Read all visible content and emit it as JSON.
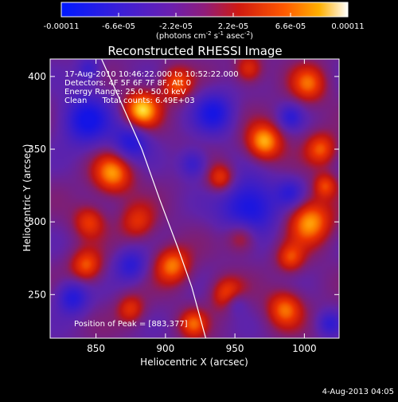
{
  "chart_data": {
    "type": "heatmap",
    "title": "Reconstructed RHESSI Image",
    "xlabel": "Heliocentric X (arcsec)",
    "ylabel": "Heliocentric Y (arcsec)",
    "xlim": [
      817,
      1025
    ],
    "ylim": [
      220,
      412
    ],
    "x_ticks": [
      850,
      900,
      950,
      1000
    ],
    "y_ticks": [
      250,
      300,
      350,
      400
    ],
    "colorbar": {
      "range": [
        -0.00011,
        0.00011
      ],
      "ticks": [
        "-0.00011",
        "-6.6e-05",
        "-2.2e-05",
        "2.2e-05",
        "6.6e-05",
        "0.00011"
      ],
      "tick_values": [
        -0.00011,
        -6.6e-05,
        -2.2e-05,
        2.2e-05,
        6.6e-05,
        0.00011
      ],
      "label_main": "(photons cm",
      "label_exp1": "-2",
      "label_mid": " s",
      "label_exp2": "-1",
      "label_end": " asec",
      "label_exp3": "-2",
      "label_close": ")"
    },
    "annotations": [
      "17-Aug-2010 10:46:22.000 to 10:52:22.000",
      "Detectors: 4F 5F 6F 7F 8F, Att 0",
      "Energy Range: 25.0 - 50.0 keV",
      "Clean      Total counts: 6.49E+03"
    ],
    "peak_label": "Position of Peak = [883,377]",
    "peak": [
      883,
      377
    ],
    "limb_curve": [
      [
        854,
        412
      ],
      [
        869,
        380
      ],
      [
        883,
        350
      ],
      [
        896,
        315
      ],
      [
        909,
        282
      ],
      [
        919,
        255
      ],
      [
        929,
        220
      ]
    ],
    "blobs": [
      [
        883,
        377,
        9,
        1.0
      ],
      [
        971,
        355,
        9,
        0.95
      ],
      [
        1004,
        300,
        11,
        0.9
      ],
      [
        862,
        333,
        10,
        0.85
      ],
      [
        905,
        270,
        9,
        0.8
      ],
      [
        945,
        250,
        8,
        0.75
      ],
      [
        908,
        395,
        8,
        0.7
      ],
      [
        986,
        240,
        9,
        0.75
      ],
      [
        843,
        270,
        8,
        0.7
      ],
      [
        940,
        330,
        7,
        0.65
      ],
      [
        1003,
        395,
        9,
        0.7
      ],
      [
        960,
        405,
        7,
        0.6
      ],
      [
        1012,
        350,
        8,
        0.7
      ],
      [
        920,
        230,
        7,
        0.65
      ],
      [
        845,
        300,
        8,
        0.6
      ],
      [
        880,
        300,
        9,
        0.55
      ],
      [
        955,
        290,
        8,
        0.6
      ],
      [
        990,
        275,
        7,
        0.6
      ],
      [
        875,
        240,
        7,
        0.55
      ],
      [
        1015,
        325,
        6,
        0.6
      ],
      [
        843,
        370,
        12,
        -0.85
      ],
      [
        875,
        355,
        9,
        -0.7
      ],
      [
        960,
        310,
        14,
        -0.9
      ],
      [
        935,
        375,
        10,
        -0.75
      ],
      [
        875,
        270,
        8,
        -0.6
      ],
      [
        950,
        245,
        6,
        -0.5
      ],
      [
        833,
        248,
        8,
        -0.7
      ],
      [
        990,
        320,
        7,
        -0.5
      ],
      [
        990,
        372,
        6,
        -0.5
      ],
      [
        845,
        405,
        6,
        -0.5
      ],
      [
        920,
        340,
        7,
        -0.55
      ],
      [
        1018,
        230,
        6,
        -0.5
      ]
    ]
  },
  "footer_date": "4-Aug-2013 04:05"
}
